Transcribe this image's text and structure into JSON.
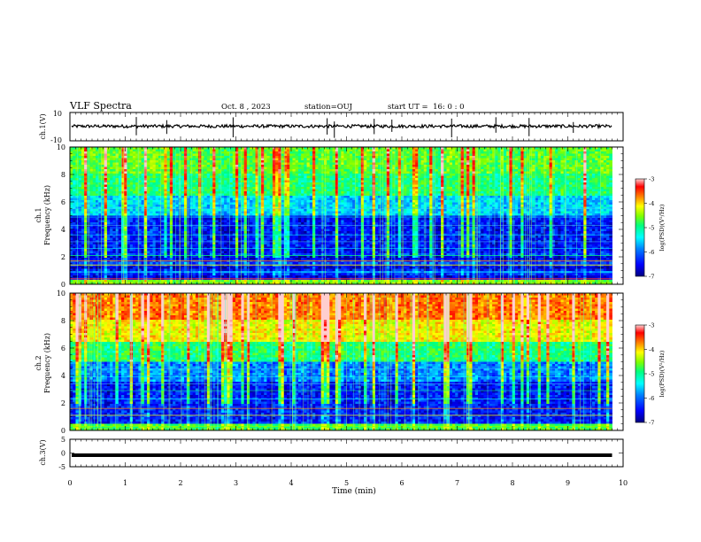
{
  "header": {
    "title": "VLF Spectra",
    "date": "Oct. 8 , 2023",
    "station": "station=OUJ",
    "start": "start UT =  16: 0 : 0"
  },
  "colors": {
    "colormap": [
      "#000080",
      "#0000ff",
      "#0080ff",
      "#00ffff",
      "#00ff80",
      "#80ff00",
      "#ffff00",
      "#ff8000",
      "#ff0000",
      "#ffd0d0"
    ]
  },
  "chart_data": [
    {
      "type": "line",
      "panel": "ch1-waveform",
      "ylabel": "ch.1(V)",
      "ylim": [
        -10,
        10
      ],
      "yticks": [
        "10",
        "-10"
      ],
      "xlim": [
        0,
        10
      ],
      "description_level": "baseline near 0 V with spikes"
    },
    {
      "type": "heatmap",
      "panel": "ch1-spectrogram",
      "ylabel": "ch.1",
      "ylabel2": "Frequency (kHz)",
      "xlim": [
        0,
        10
      ],
      "ylim": [
        0,
        10
      ],
      "yticks": [
        "0",
        "2",
        "4",
        "6",
        "8",
        "10"
      ],
      "data_end_minute": 9.8,
      "colorbar": {
        "label": "log(PSD)(V²/Hz)",
        "range": [
          -7,
          -3
        ],
        "ticks": [
          "-3",
          "-4",
          "-5",
          "-6",
          "-7"
        ]
      }
    },
    {
      "type": "heatmap",
      "panel": "ch2-spectrogram",
      "ylabel": "ch.2",
      "ylabel2": "Frequency (kHz)",
      "xlim": [
        0,
        10
      ],
      "ylim": [
        0,
        10
      ],
      "yticks": [
        "0",
        "2",
        "4",
        "6",
        "8",
        "10"
      ],
      "data_end_minute": 9.8,
      "colorbar": {
        "label": "log(PSD)(V²/Hz)",
        "range": [
          -7,
          -3
        ],
        "ticks": [
          "-3",
          "-4",
          "-5",
          "-6",
          "-7"
        ]
      }
    },
    {
      "type": "line",
      "panel": "ch3-waveform",
      "ylabel": "ch.3(V)",
      "ylim": [
        -5,
        5
      ],
      "yticks": [
        "5",
        "0",
        "-5"
      ],
      "xlim": [
        0,
        10
      ],
      "level": -0.8
    }
  ],
  "xaxis": {
    "label": "Time (min)",
    "ticks": [
      "0",
      "1",
      "2",
      "3",
      "4",
      "5",
      "6",
      "7",
      "8",
      "9",
      "10"
    ]
  }
}
